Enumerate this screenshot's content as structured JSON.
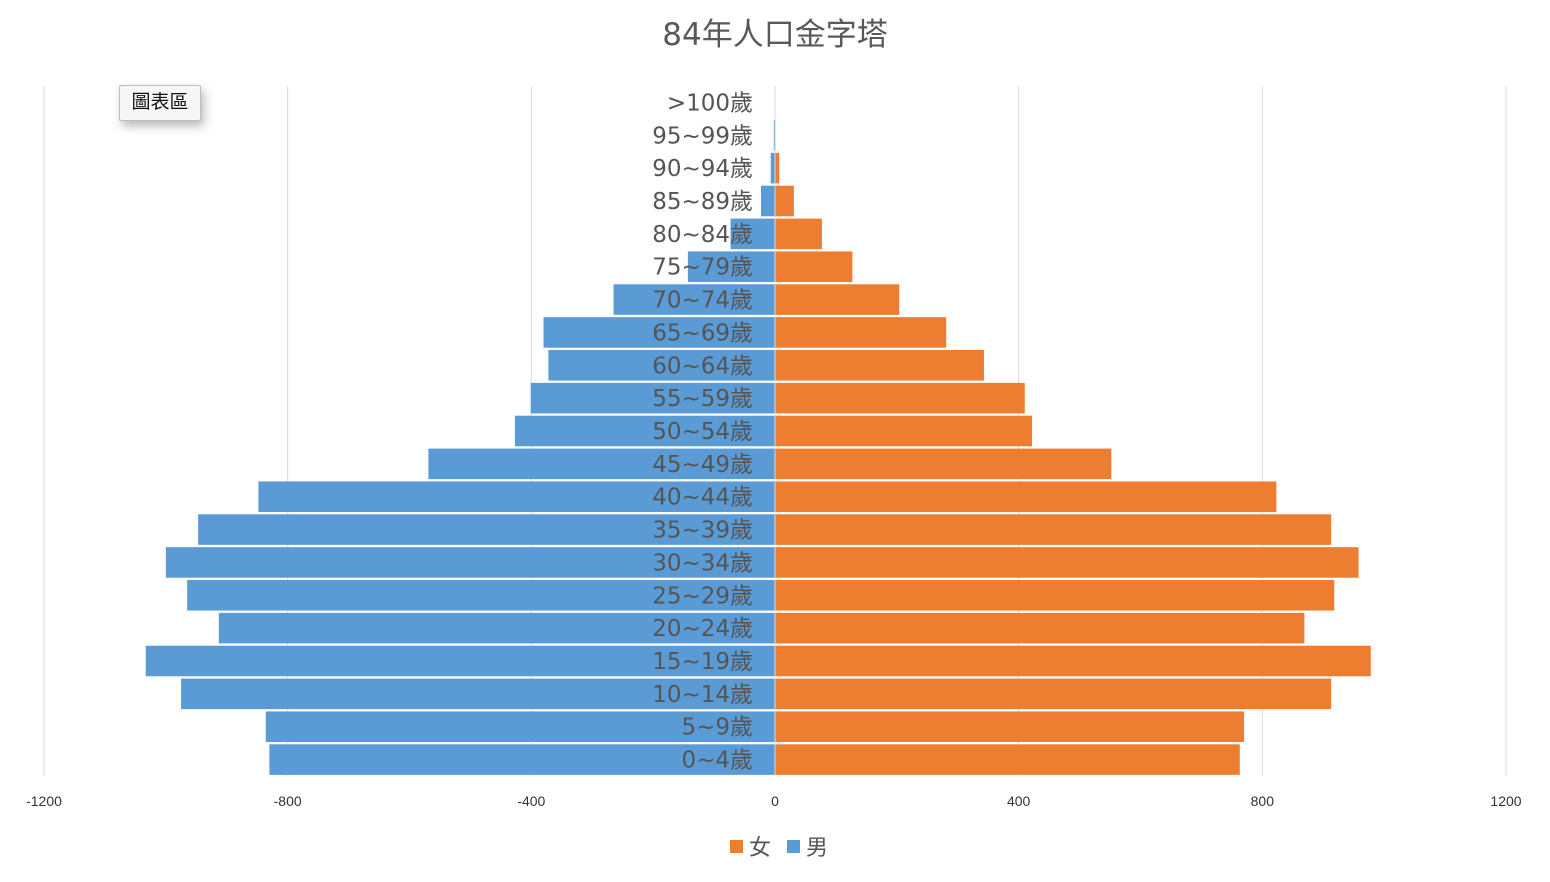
{
  "chart_data": {
    "type": "bar",
    "orientation": "horizontal",
    "title": "84年人口金字塔",
    "categories": [
      "0~4歲",
      "5~9歲",
      "10~14歲",
      "15~19歲",
      "20~24歲",
      "25~29歲",
      "30~34歲",
      "35~39歲",
      "40~44歲",
      "45~49歲",
      "50~54歲",
      "55~59歲",
      "60~64歲",
      "65~69歲",
      "70~74歲",
      "75~79歲",
      "80~84歲",
      "85~89歲",
      "90~94歲",
      "95~99歲",
      ">100歲"
    ],
    "series": [
      {
        "name": "女",
        "color": "#ED7D31",
        "values": [
          763,
          770,
          913,
          978,
          869,
          918,
          958,
          913,
          823,
          552,
          422,
          410,
          343,
          281,
          204,
          127,
          77,
          31,
          7,
          1,
          0
        ]
      },
      {
        "name": "男",
        "color": "#5B9BD5",
        "values": [
          -830,
          -836,
          -975,
          -1033,
          -913,
          -965,
          -1000,
          -947,
          -848,
          -569,
          -427,
          -401,
          -372,
          -380,
          -265,
          -143,
          -73,
          -23,
          -7,
          -2,
          0
        ]
      }
    ],
    "xlim": [
      -1200,
      1200
    ],
    "xticks": [
      -1200,
      -800,
      -400,
      0,
      400,
      800,
      1200
    ],
    "xtick_labels": [
      "-1200",
      "-800",
      "-400",
      "0",
      "400",
      "800",
      "1200"
    ],
    "grid": "vertical",
    "legend_position": "bottom"
  },
  "tooltip": {
    "label": "圖表區"
  }
}
